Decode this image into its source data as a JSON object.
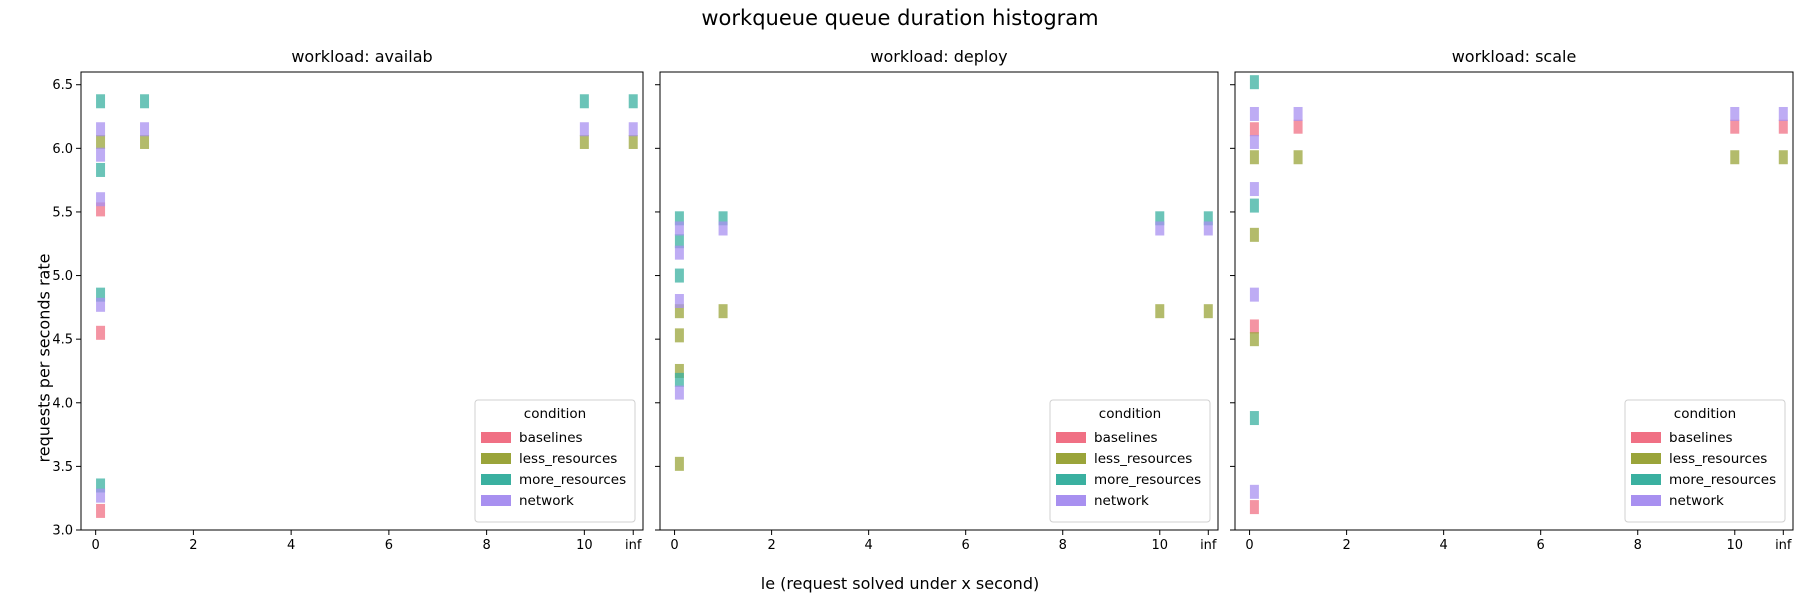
{
  "figure": {
    "title": "workqueue queue duration histogram",
    "xlabel": "le (request solved under x second)",
    "ylabel": "requests per seconds rate"
  },
  "legend": {
    "title": "condition",
    "placement": "lower right",
    "entries": [
      {
        "name": "baselines",
        "color": "#f07084"
      },
      {
        "name": "less_resources",
        "color": "#9aa43a"
      },
      {
        "name": "more_resources",
        "color": "#3ab0a0"
      },
      {
        "name": "network",
        "color": "#a890f0"
      }
    ]
  },
  "chart_data": [
    {
      "type": "heatmap",
      "title": "workload: availab",
      "xlim": [
        -0.3,
        11.2
      ],
      "ylim": [
        3.0,
        6.6
      ],
      "xticks": [
        0,
        2,
        4,
        6,
        8,
        10,
        "inf"
      ],
      "yticks": [
        3.0,
        3.5,
        4.0,
        4.5,
        5.0,
        5.5,
        6.0,
        6.5
      ],
      "series": [
        {
          "name": "baselines",
          "cells": [
            {
              "le": 0.1,
              "rate": 3.15
            },
            {
              "le": 0.1,
              "rate": 4.55
            },
            {
              "le": 0.1,
              "rate": 5.52
            }
          ]
        },
        {
          "name": "less_resources",
          "cells": [
            {
              "le": 0.1,
              "rate": 6.05
            },
            {
              "le": 1,
              "rate": 6.05
            },
            {
              "le": 10,
              "rate": 6.05
            },
            {
              "le": "inf",
              "rate": 6.05
            }
          ]
        },
        {
          "name": "more_resources",
          "cells": [
            {
              "le": 0.1,
              "rate": 3.35
            },
            {
              "le": 0.1,
              "rate": 4.85
            },
            {
              "le": 0.1,
              "rate": 5.83
            },
            {
              "le": 0.1,
              "rate": 6.37
            },
            {
              "le": 1,
              "rate": 6.37
            },
            {
              "le": 10,
              "rate": 6.37
            },
            {
              "le": "inf",
              "rate": 6.37
            }
          ]
        },
        {
          "name": "network",
          "cells": [
            {
              "le": 0.1,
              "rate": 3.27
            },
            {
              "le": 0.1,
              "rate": 4.77
            },
            {
              "le": 0.1,
              "rate": 5.6
            },
            {
              "le": 0.1,
              "rate": 5.95
            },
            {
              "le": 0.1,
              "rate": 6.15
            },
            {
              "le": 1,
              "rate": 6.15
            },
            {
              "le": 10,
              "rate": 6.15
            },
            {
              "le": "inf",
              "rate": 6.15
            }
          ]
        }
      ]
    },
    {
      "type": "heatmap",
      "title": "workload: deploy",
      "xlim": [
        -0.3,
        11.2
      ],
      "ylim": [
        3.0,
        6.6
      ],
      "xticks": [
        0,
        2,
        4,
        6,
        8,
        10,
        "inf"
      ],
      "yticks": [
        3.0,
        3.5,
        4.0,
        4.5,
        5.0,
        5.5,
        6.0,
        6.5
      ],
      "series": [
        {
          "name": "baselines",
          "cells": []
        },
        {
          "name": "less_resources",
          "cells": [
            {
              "le": 0.1,
              "rate": 3.52
            },
            {
              "le": 0.1,
              "rate": 4.25
            },
            {
              "le": 0.1,
              "rate": 4.53
            },
            {
              "le": 0.1,
              "rate": 4.72
            },
            {
              "le": 1,
              "rate": 4.72
            },
            {
              "le": 10,
              "rate": 4.72
            },
            {
              "le": "inf",
              "rate": 4.72
            }
          ]
        },
        {
          "name": "more_resources",
          "cells": [
            {
              "le": 0.1,
              "rate": 4.18
            },
            {
              "le": 0.1,
              "rate": 5.0
            },
            {
              "le": 0.1,
              "rate": 5.27
            },
            {
              "le": 0.1,
              "rate": 5.45
            },
            {
              "le": 1,
              "rate": 5.45
            },
            {
              "le": 10,
              "rate": 5.45
            },
            {
              "le": "inf",
              "rate": 5.45
            }
          ]
        },
        {
          "name": "network",
          "cells": [
            {
              "le": 0.1,
              "rate": 4.08
            },
            {
              "le": 0.1,
              "rate": 4.8
            },
            {
              "le": 0.1,
              "rate": 5.18
            },
            {
              "le": 0.1,
              "rate": 5.37
            },
            {
              "le": 1,
              "rate": 5.37
            },
            {
              "le": 10,
              "rate": 5.37
            },
            {
              "le": "inf",
              "rate": 5.37
            }
          ]
        }
      ]
    },
    {
      "type": "heatmap",
      "title": "workload: scale",
      "xlim": [
        -0.3,
        11.2
      ],
      "ylim": [
        3.0,
        6.6
      ],
      "xticks": [
        0,
        2,
        4,
        6,
        8,
        10,
        "inf"
      ],
      "yticks": [
        3.0,
        3.5,
        4.0,
        4.5,
        5.0,
        5.5,
        6.0,
        6.5
      ],
      "series": [
        {
          "name": "baselines",
          "cells": [
            {
              "le": 0.1,
              "rate": 3.18
            },
            {
              "le": 0.1,
              "rate": 4.6
            },
            {
              "le": 0.1,
              "rate": 6.15
            },
            {
              "le": 1,
              "rate": 6.17
            },
            {
              "le": 10,
              "rate": 6.17
            },
            {
              "le": "inf",
              "rate": 6.17
            }
          ]
        },
        {
          "name": "less_resources",
          "cells": [
            {
              "le": 0.1,
              "rate": 4.5
            },
            {
              "le": 0.1,
              "rate": 5.32
            },
            {
              "le": 0.1,
              "rate": 5.93
            },
            {
              "le": 1,
              "rate": 5.93
            },
            {
              "le": 10,
              "rate": 5.93
            },
            {
              "le": "inf",
              "rate": 5.93
            }
          ]
        },
        {
          "name": "more_resources",
          "cells": [
            {
              "le": 0.1,
              "rate": 3.88
            },
            {
              "le": 0.1,
              "rate": 5.55
            },
            {
              "le": 0.1,
              "rate": 6.52
            }
          ]
        },
        {
          "name": "network",
          "cells": [
            {
              "le": 0.1,
              "rate": 3.3
            },
            {
              "le": 0.1,
              "rate": 4.85
            },
            {
              "le": 0.1,
              "rate": 5.68
            },
            {
              "le": 0.1,
              "rate": 6.05
            },
            {
              "le": 0.1,
              "rate": 6.27
            },
            {
              "le": 1,
              "rate": 6.27
            },
            {
              "le": 10,
              "rate": 6.27
            },
            {
              "le": "inf",
              "rate": 6.27
            }
          ]
        }
      ]
    }
  ]
}
